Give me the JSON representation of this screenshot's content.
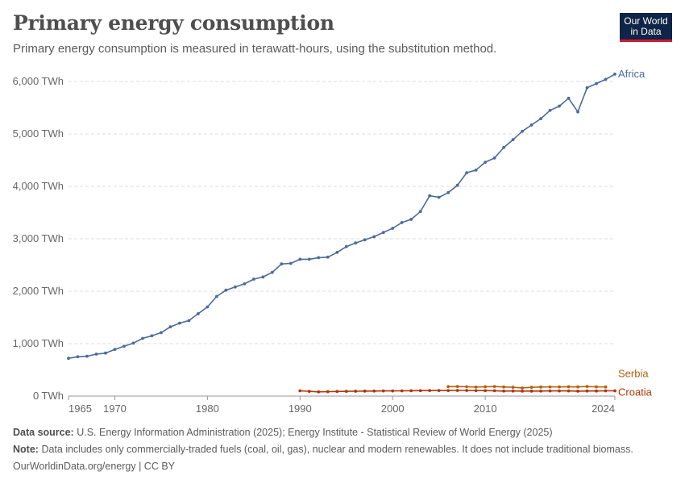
{
  "header": {
    "title": "Primary energy consumption",
    "subtitle": "Primary energy consumption is measured in terawatt-hours, using the substitution method.",
    "logo_line1": "Our World",
    "logo_line2": "in Data"
  },
  "footer": {
    "source_label": "Data source:",
    "source_text": "U.S. Energy Information Administration (2025); Energy Institute - Statistical Review of World Energy (2025)",
    "note_label": "Note:",
    "note_text": "Data includes only commercially-traded fuels (coal, oil, gas), nuclear and modern renewables. It does not include traditional biomass.",
    "credit": "OurWorldinData.org/energy | CC BY"
  },
  "chart_data": {
    "type": "line",
    "title": "Primary energy consumption",
    "ylabel": "",
    "xlabel": "",
    "ylim": [
      0,
      6000
    ],
    "xlim": [
      1965,
      2024
    ],
    "y_ticks": [
      "0 TWh",
      "1,000 TWh",
      "2,000 TWh",
      "3,000 TWh",
      "4,000 TWh",
      "5,000 TWh",
      "6,000 TWh"
    ],
    "x_ticks": [
      1965,
      1970,
      1980,
      1990,
      2000,
      2010,
      2024
    ],
    "grid": true,
    "legend": "right-end labels",
    "series": [
      {
        "name": "Africa",
        "color": "#4c6a9c",
        "x": [
          1965,
          1966,
          1967,
          1968,
          1969,
          1970,
          1971,
          1972,
          1973,
          1974,
          1975,
          1976,
          1977,
          1978,
          1979,
          1980,
          1981,
          1982,
          1983,
          1984,
          1985,
          1986,
          1987,
          1988,
          1989,
          1990,
          1991,
          1992,
          1993,
          1994,
          1995,
          1996,
          1997,
          1998,
          1999,
          2000,
          2001,
          2002,
          2003,
          2004,
          2005,
          2006,
          2007,
          2008,
          2009,
          2010,
          2011,
          2012,
          2013,
          2014,
          2015,
          2016,
          2017,
          2018,
          2019,
          2020,
          2021,
          2022,
          2023,
          2024
        ],
        "values": [
          720,
          750,
          760,
          800,
          820,
          890,
          950,
          1010,
          1100,
          1150,
          1210,
          1320,
          1390,
          1440,
          1570,
          1700,
          1900,
          2020,
          2080,
          2140,
          2230,
          2270,
          2360,
          2520,
          2530,
          2610,
          2610,
          2640,
          2650,
          2740,
          2850,
          2920,
          2980,
          3040,
          3120,
          3200,
          3310,
          3370,
          3520,
          3820,
          3790,
          3880,
          4020,
          4260,
          4310,
          4460,
          4540,
          4740,
          4890,
          5050,
          5170,
          5290,
          5450,
          5530,
          5680,
          5420,
          5880,
          5960,
          6040,
          6140
        ]
      },
      {
        "name": "Serbia",
        "color": "#b16214",
        "x": [
          2006,
          2007,
          2008,
          2009,
          2010,
          2011,
          2012,
          2013,
          2014,
          2015,
          2016,
          2017,
          2018,
          2019,
          2020,
          2021,
          2022,
          2023
        ],
        "values": [
          180,
          182,
          178,
          172,
          178,
          182,
          174,
          168,
          155,
          168,
          172,
          175,
          175,
          178,
          176,
          182,
          176,
          174
        ]
      },
      {
        "name": "Croatia",
        "color": "#b13507",
        "x": [
          1990,
          1991,
          1992,
          1993,
          1994,
          1995,
          1996,
          1997,
          1998,
          1999,
          2000,
          2001,
          2002,
          2003,
          2004,
          2005,
          2006,
          2007,
          2008,
          2009,
          2010,
          2011,
          2012,
          2013,
          2014,
          2015,
          2016,
          2017,
          2018,
          2019,
          2020,
          2021,
          2022,
          2023,
          2024
        ],
        "values": [
          100,
          90,
          80,
          84,
          88,
          90,
          93,
          95,
          96,
          98,
          98,
          100,
          102,
          104,
          106,
          106,
          106,
          107,
          107,
          104,
          104,
          102,
          96,
          97,
          95,
          95,
          96,
          98,
          98,
          98,
          94,
          97,
          97,
          100,
          100
        ]
      }
    ]
  }
}
